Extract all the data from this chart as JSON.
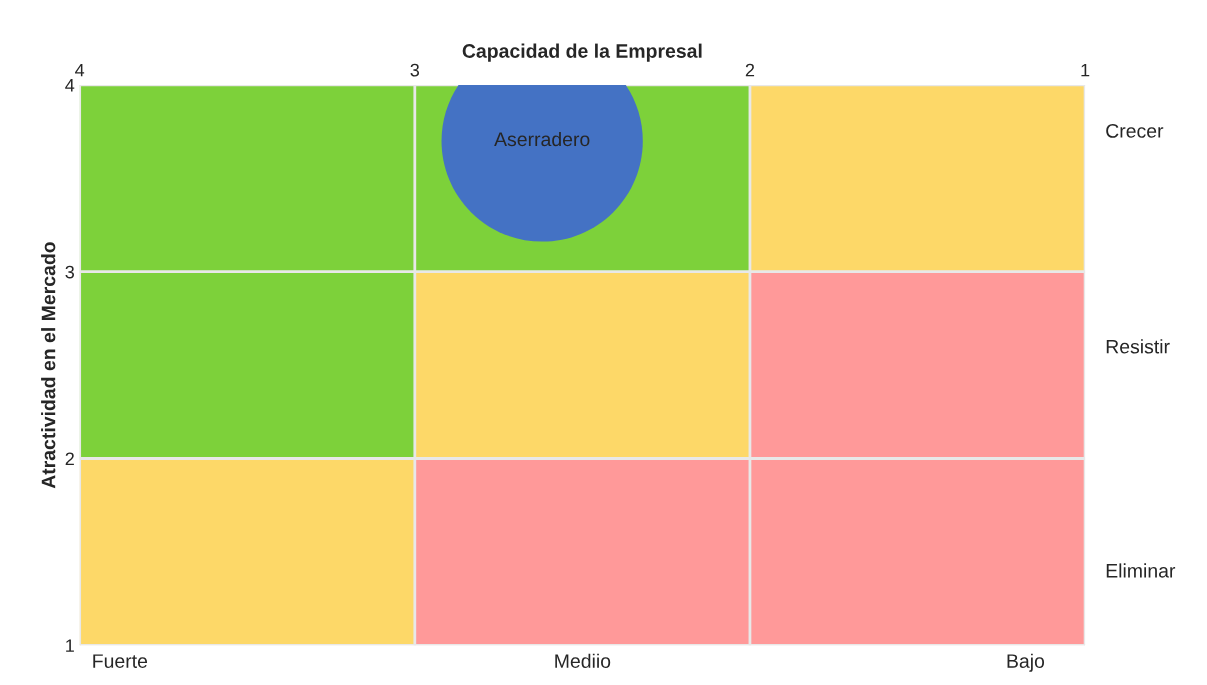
{
  "chart_data": {
    "type": "bubble",
    "xlabel": "Capacidad de la Empresal",
    "ylabel": "Atractividad en el Mercado",
    "x": [
      2.62
    ],
    "series": [
      {
        "name": "Aserradero",
        "color": "#4472c4",
        "values": [
          3.7
        ],
        "sizes": [
          1
        ]
      }
    ],
    "xlim": [
      4,
      1
    ],
    "xticks": [
      4,
      3,
      2,
      1
    ],
    "ylim": [
      1,
      4
    ],
    "yticks": [
      1,
      2,
      3,
      4
    ],
    "grid": true,
    "legend": false,
    "annotations": [
      "Fuerte",
      "Mediio",
      "Bajo",
      "Crecer",
      "Resistir",
      "Eliminar"
    ]
  }
}
